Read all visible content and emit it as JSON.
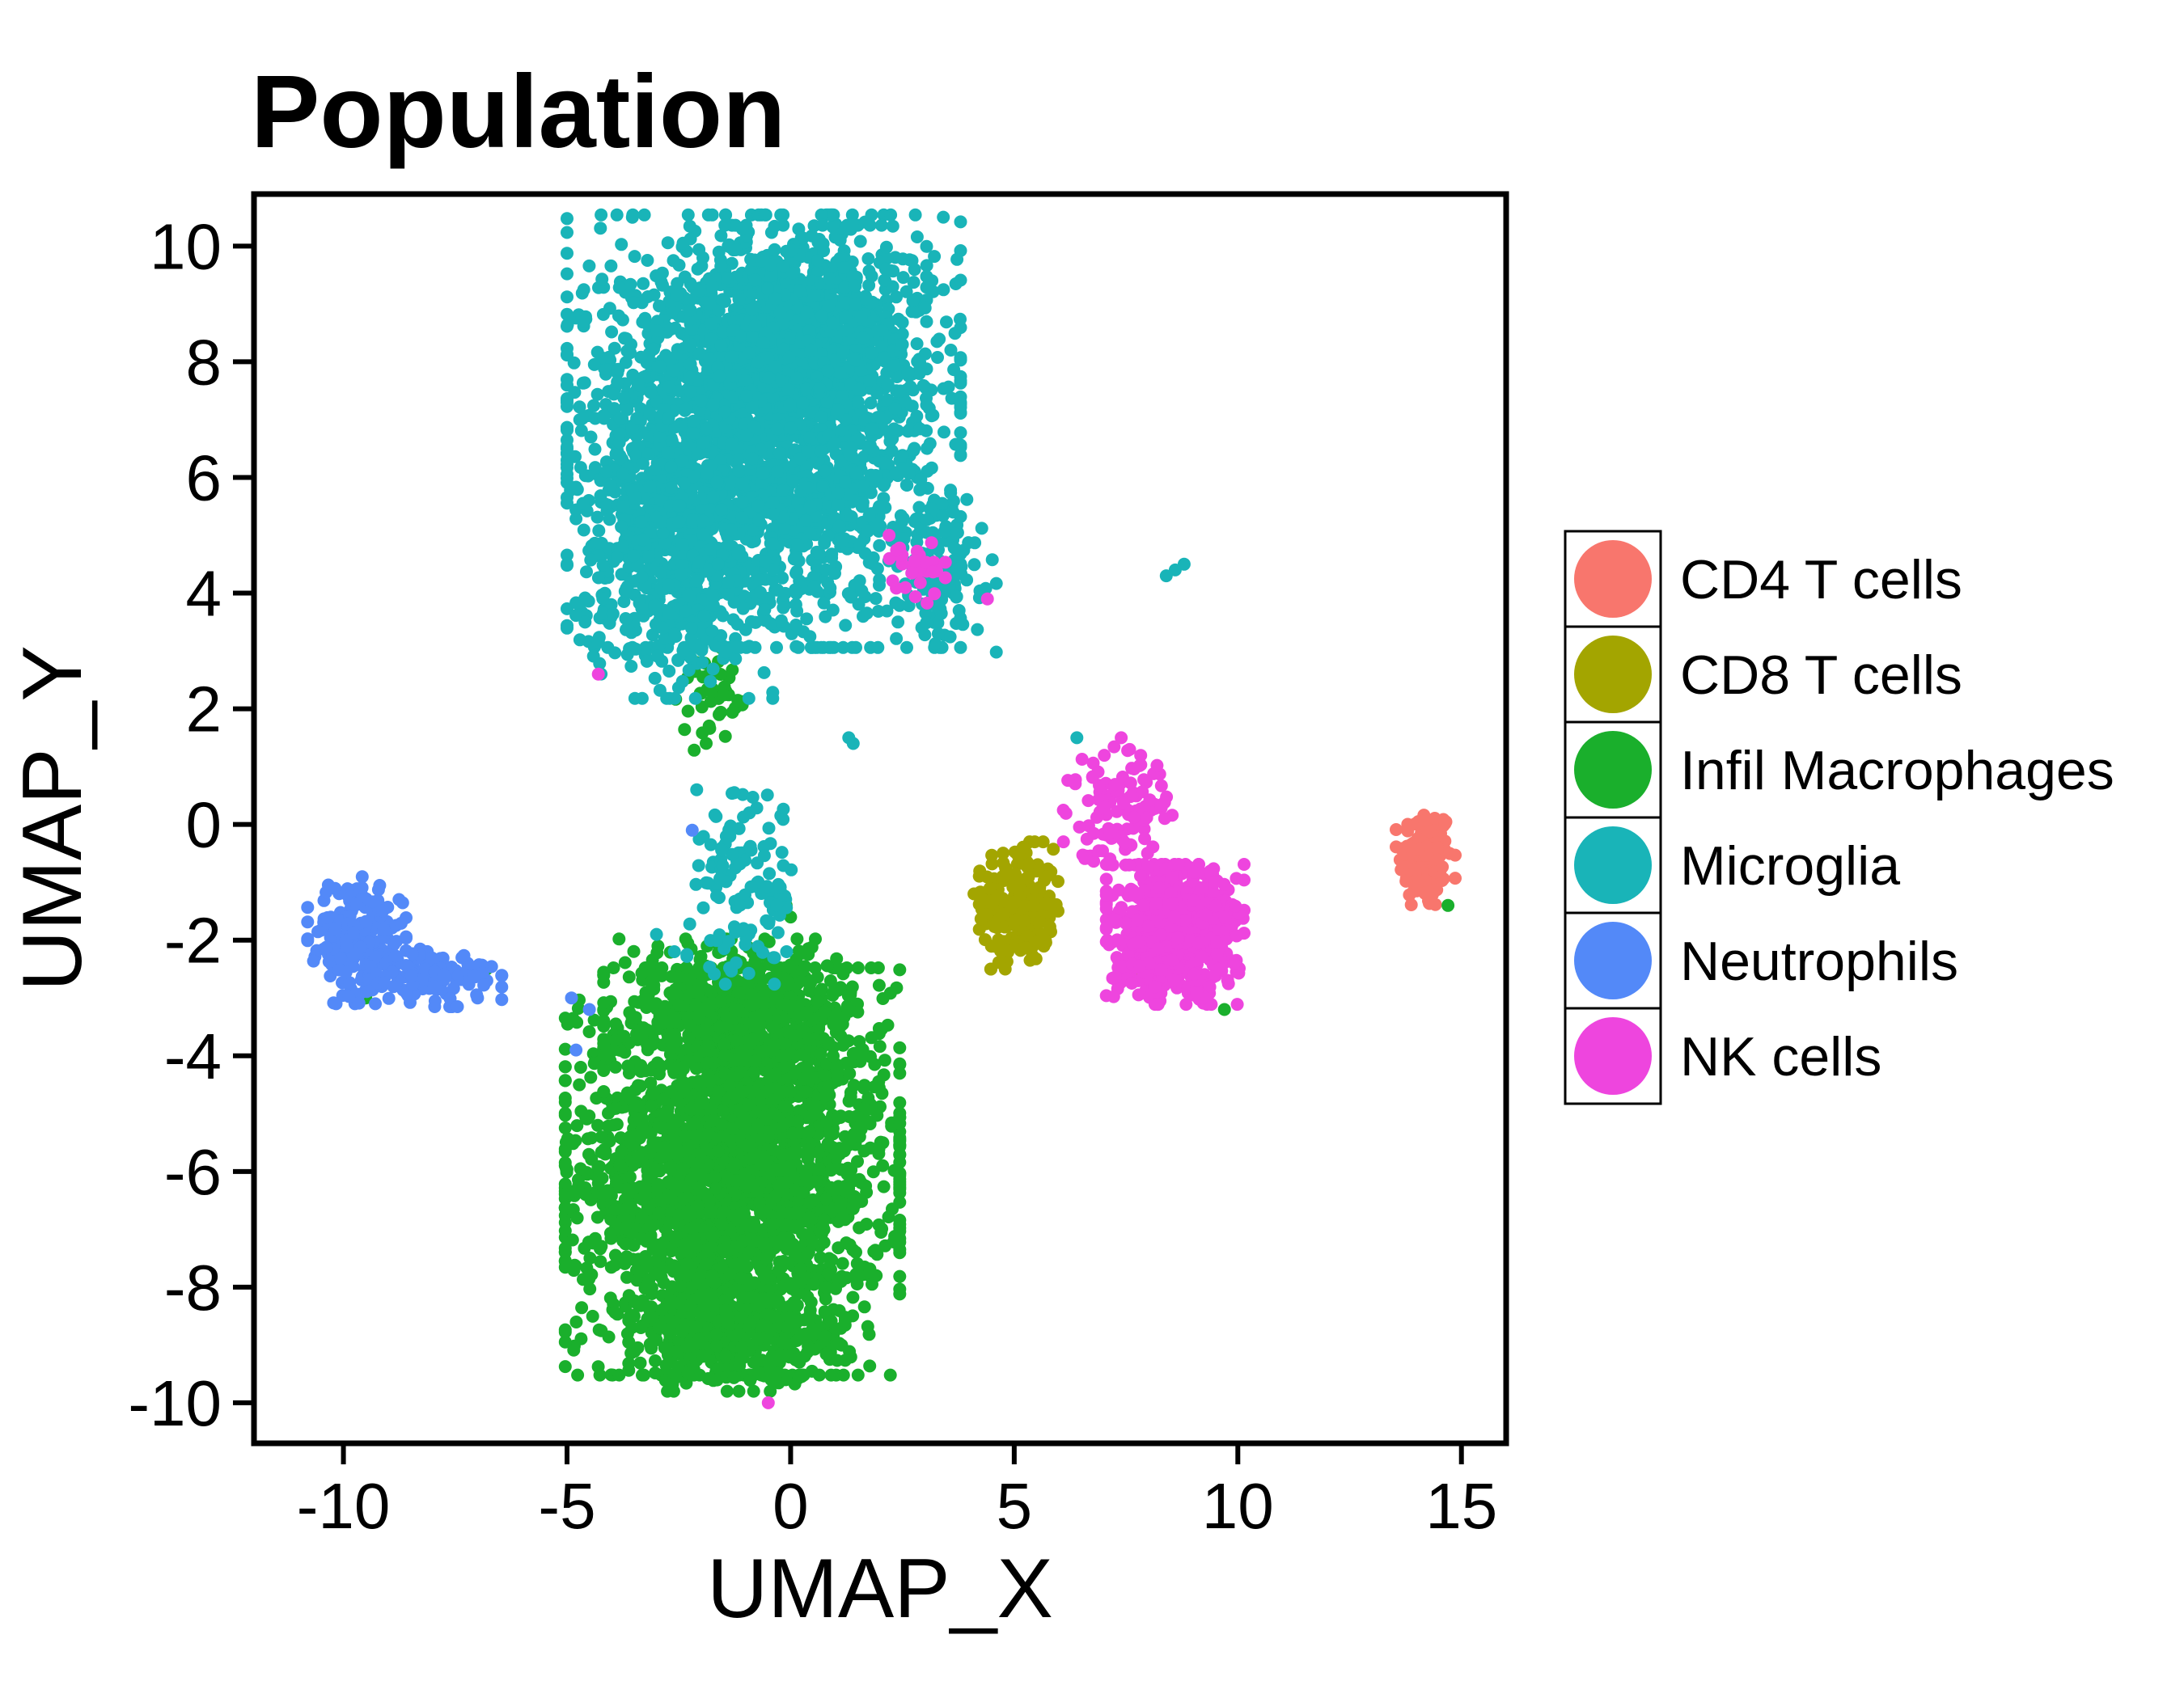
{
  "chart_data": {
    "type": "scatter",
    "title": "Population",
    "xlabel": "UMAP_X",
    "ylabel": "UMAP_Y",
    "xlim": [
      -12,
      16
    ],
    "ylim": [
      -10.7,
      10.9
    ],
    "x_ticks": [
      -10,
      -5,
      0,
      5,
      10,
      15
    ],
    "y_ticks": [
      -10,
      -8,
      -6,
      -4,
      -2,
      0,
      2,
      4,
      6,
      8,
      10
    ],
    "grid": false,
    "legend_position": "right",
    "series": [
      {
        "name": "CD4 T cells",
        "color": "#F8766D",
        "clusters": [
          {
            "cx": 14.2,
            "cy": -0.6,
            "sx": 0.3,
            "sy": 0.45,
            "n": 140
          }
        ],
        "points": []
      },
      {
        "name": "CD8 T cells",
        "color": "#A3A500",
        "clusters": [
          {
            "cx": 5.1,
            "cy": -1.4,
            "sx": 0.4,
            "sy": 0.5,
            "n": 220
          }
        ],
        "points": [
          [
            4.1,
            -1.2
          ],
          [
            4.3,
            -1.3
          ],
          [
            7.7,
            -2.5
          ]
        ]
      },
      {
        "name": "Infil Macrophages",
        "color": "#1AAF2C",
        "clusters": [
          {
            "cx": -1.3,
            "cy": -6.0,
            "sx": 1.7,
            "sy": 1.6,
            "n": 2600
          },
          {
            "cx": -1.1,
            "cy": -3.3,
            "sx": 1.4,
            "sy": 0.6,
            "n": 500
          },
          {
            "cx": -1.2,
            "cy": -8.7,
            "sx": 1.1,
            "sy": 0.5,
            "n": 400
          },
          {
            "cx": -1.8,
            "cy": 2.2,
            "sx": 0.35,
            "sy": 0.45,
            "n": 40
          }
        ],
        "points": [
          [
            -0.2,
            -1.2
          ],
          [
            -0.1,
            -1.4
          ],
          [
            0.0,
            -1.6
          ],
          [
            -6.8,
            -2.5
          ],
          [
            -9.5,
            -3.0
          ],
          [
            14.7,
            -1.4
          ],
          [
            9.7,
            -3.2
          ],
          [
            -2.1,
            2.8
          ],
          [
            -1.6,
            1.9
          ]
        ]
      },
      {
        "name": "Microglia",
        "color": "#19B4B8",
        "clusters": [
          {
            "cx": -0.6,
            "cy": 6.8,
            "sx": 2.0,
            "sy": 1.7,
            "n": 2400
          },
          {
            "cx": -2.6,
            "cy": 4.6,
            "sx": 1.0,
            "sy": 1.1,
            "n": 500
          },
          {
            "cx": 0.4,
            "cy": 8.6,
            "sx": 1.2,
            "sy": 0.8,
            "n": 600
          },
          {
            "cx": 3.5,
            "cy": 4.3,
            "sx": 0.5,
            "sy": 0.6,
            "n": 90
          },
          {
            "cx": -1.0,
            "cy": -1.0,
            "sx": 0.6,
            "sy": 0.8,
            "n": 120
          }
        ],
        "points": [
          [
            8.6,
            4.4
          ],
          [
            8.8,
            4.5
          ],
          [
            8.4,
            4.3
          ],
          [
            1.3,
            1.5
          ],
          [
            1.4,
            1.4
          ],
          [
            -2.1,
            0.6
          ],
          [
            -5.0,
            4.5
          ],
          [
            6.4,
            1.5
          ],
          [
            -3.0,
            -1.9
          ],
          [
            -2.6,
            -2.2
          ],
          [
            3.3,
            3.3
          ],
          [
            2.4,
            3.5
          ]
        ]
      },
      {
        "name": "Neutrophils",
        "color": "#5389F8",
        "clusters": [
          {
            "cx": -9.7,
            "cy": -2.0,
            "sx": 0.5,
            "sy": 0.5,
            "n": 200
          },
          {
            "cx": -8.0,
            "cy": -2.6,
            "sx": 0.7,
            "sy": 0.25,
            "n": 120
          }
        ],
        "points": [
          [
            -7.0,
            -3.0
          ],
          [
            -4.9,
            -3.0
          ],
          [
            -4.8,
            -3.9
          ],
          [
            -4.5,
            -3.2
          ],
          [
            -2.2,
            -0.1
          ]
        ]
      },
      {
        "name": "NK cells",
        "color": "#EE45DE",
        "clusters": [
          {
            "cx": 8.6,
            "cy": -1.9,
            "sx": 0.7,
            "sy": 0.55,
            "n": 700
          },
          {
            "cx": 7.4,
            "cy": 0.4,
            "sx": 0.6,
            "sy": 0.5,
            "n": 120
          },
          {
            "cx": 2.8,
            "cy": 4.4,
            "sx": 0.3,
            "sy": 0.3,
            "n": 30
          }
        ],
        "points": [
          [
            4.4,
            3.9
          ],
          [
            2.2,
            5.0
          ],
          [
            6.1,
            -0.3
          ],
          [
            -4.3,
            2.6
          ],
          [
            -0.5,
            -10.0
          ]
        ]
      }
    ]
  }
}
